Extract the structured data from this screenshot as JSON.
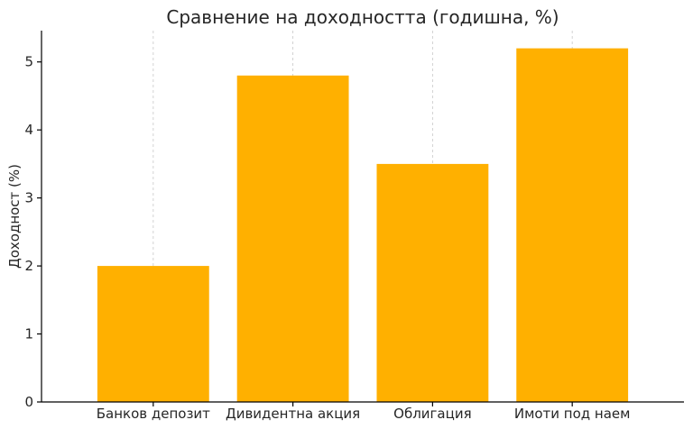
{
  "chart_data": {
    "type": "bar",
    "title": "Сравнение на доходността (годишна, %)",
    "xlabel": "",
    "ylabel": "Доходност (%)",
    "categories": [
      "Банков депозит",
      "Дивидентна акция",
      "Облигация",
      "Имоти под наем"
    ],
    "values": [
      2.0,
      4.8,
      3.5,
      5.2
    ],
    "ylim": [
      0,
      5.46
    ],
    "yticks": [
      0,
      1,
      2,
      3,
      4,
      5
    ],
    "bar_color": "#FFB000",
    "grid": "vertical dashed",
    "legend": "none"
  }
}
